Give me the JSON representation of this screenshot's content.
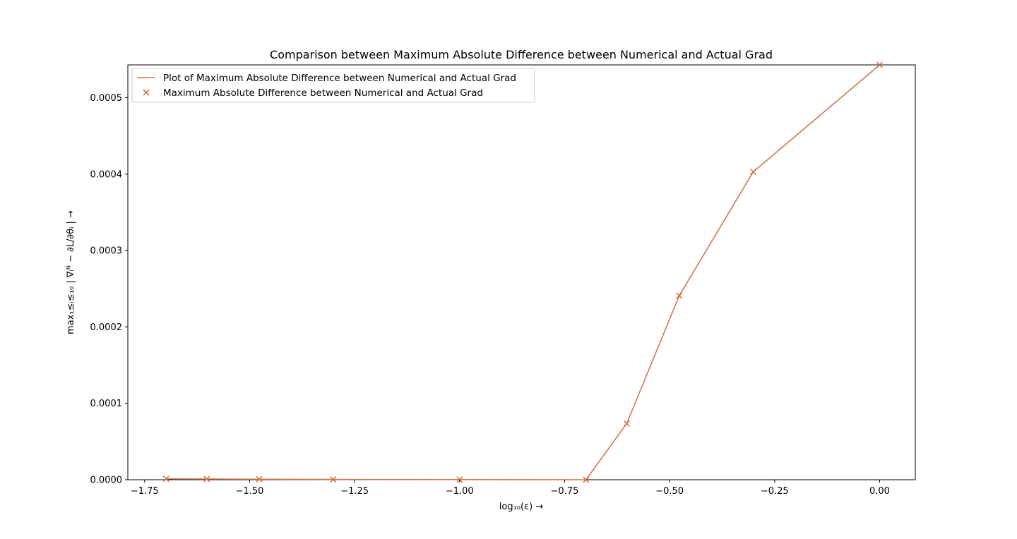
{
  "chart_data": {
    "type": "line",
    "title": "Comparison between Maximum Absolute Difference between Numerical and Actual Grad",
    "xlabel": "log₁₀(ε) →",
    "ylabel": "max₁≤ᵢ≤₁₀ | ∇ᵢᴺ − ∂L/∂θᵢ | →",
    "xlim": [
      -1.79,
      0.085
    ],
    "ylim": [
      0,
      0.000543
    ],
    "xticks": [
      -1.75,
      -1.5,
      -1.25,
      -1.0,
      -0.75,
      -0.5,
      -0.25,
      0.0
    ],
    "xtick_labels": [
      "−1.75",
      "−1.50",
      "−1.25",
      "−1.00",
      "−0.75",
      "−0.50",
      "−0.25",
      "0.00"
    ],
    "yticks": [
      0,
      0.0001,
      0.0002,
      0.0003,
      0.0004,
      0.0005
    ],
    "ytick_labels": [
      "0.0000",
      "0.0001",
      "0.0002",
      "0.0003",
      "0.0004",
      "0.0005"
    ],
    "grid": false,
    "legend_position": "top-left",
    "color": "#D0774F",
    "series": [
      {
        "name": "Plot of Maximum Absolute Difference between Numerical and Actual Grad",
        "kind": "line",
        "x": [
          -1.699,
          -1.602,
          -1.477,
          -1.301,
          -1.0,
          -0.699,
          -0.602,
          -0.477,
          -0.301,
          0.0
        ],
        "y": [
          1.2e-06,
          1e-06,
          7e-07,
          4e-07,
          2e-07,
          0.0,
          7.37e-05,
          0.000241,
          0.000403,
          0.000543
        ]
      },
      {
        "name": "Maximum Absolute Difference between Numerical and Actual Grad",
        "kind": "scatter",
        "marker": "x",
        "x": [
          -1.699,
          -1.602,
          -1.477,
          -1.301,
          -1.0,
          -0.699,
          -0.602,
          -0.477,
          -0.301,
          0.0
        ],
        "y": [
          1.2e-06,
          1e-06,
          7e-07,
          4e-07,
          2e-07,
          0.0,
          7.37e-05,
          0.000241,
          0.000403,
          0.000543
        ]
      }
    ]
  }
}
